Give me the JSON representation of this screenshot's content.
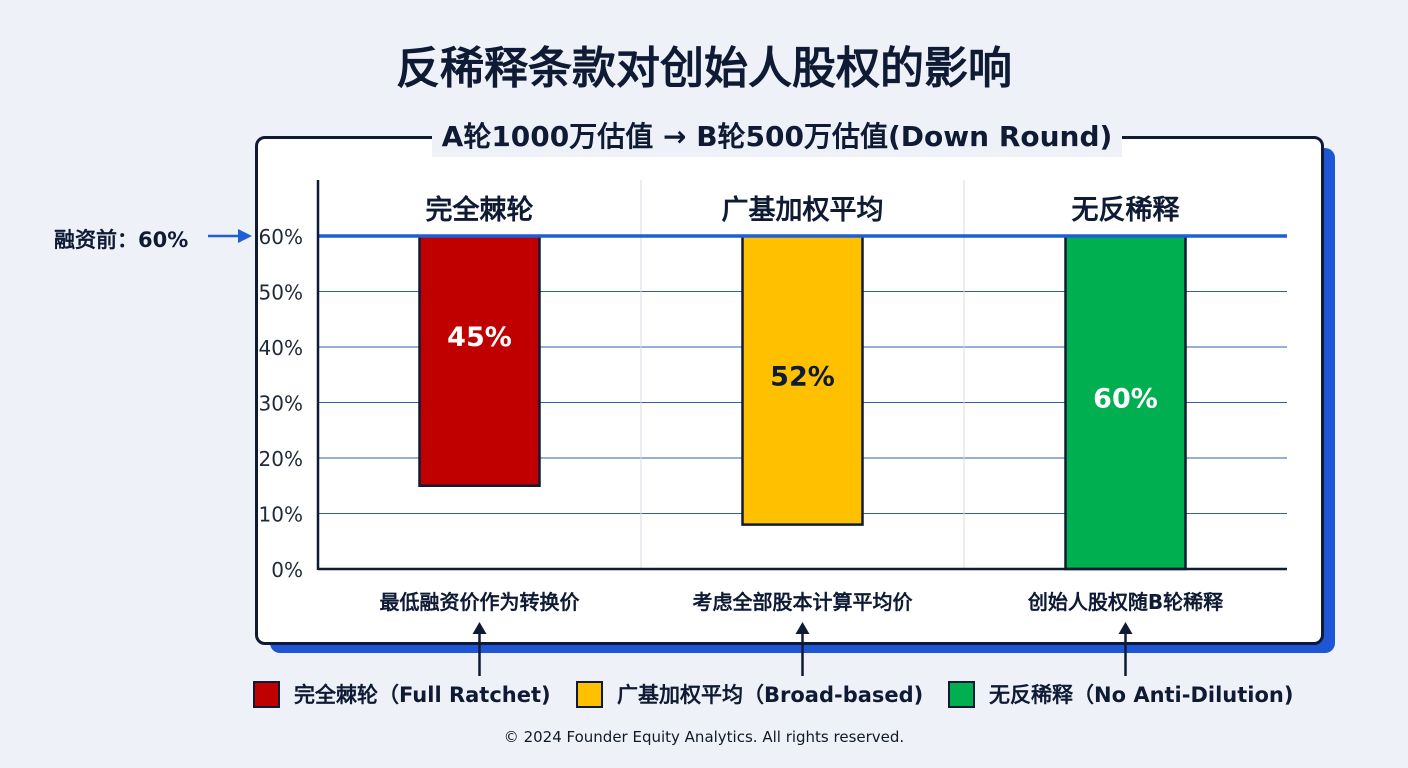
{
  "title": "反稀释条款对创始人股权的影响",
  "subtitle": "A轮1000万估值 → B轮500万估值(Down Round)",
  "pre_label": "融资前：60%",
  "colors": {
    "full_ratchet": "#c00000",
    "broad_based": "#ffc000",
    "no_anti_dilution": "#00b050",
    "reference_line": "#1f5fd6",
    "accent": "#1e56d6"
  },
  "chart_data": {
    "type": "bar",
    "categories": [
      "完全棘轮",
      "广基加权平均",
      "无反稀释"
    ],
    "values": [
      45,
      52,
      60
    ],
    "value_labels": [
      "45%",
      "52%",
      "60%"
    ],
    "descriptions": [
      "最低融资价作为转换价",
      "考虑全部股本计算平均价",
      "创始人股权随B轮稀释"
    ],
    "reference_value": 60,
    "ylim": [
      0,
      60
    ],
    "yticks": [
      0,
      10,
      20,
      30,
      40,
      50,
      60
    ],
    "ytick_labels": [
      "0%",
      "10%",
      "20%",
      "30%",
      "40%",
      "50%",
      "60%"
    ],
    "grid": true,
    "legend_position": "bottom"
  },
  "legend": [
    {
      "label": "完全棘轮（Full Ratchet)",
      "color": "#c00000"
    },
    {
      "label": "广基加权平均（Broad-based)",
      "color": "#ffc000"
    },
    {
      "label": "无反稀释（No Anti-Dilution)",
      "color": "#00b050"
    }
  ],
  "footer": "© 2024 Founder Equity Analytics. All rights reserved."
}
